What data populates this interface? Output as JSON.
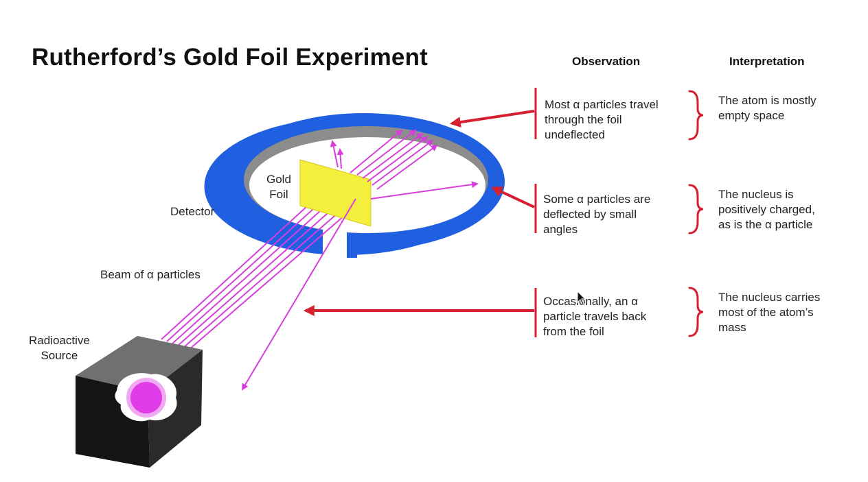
{
  "title": "Rutherford’s Gold Foil Experiment",
  "columns": {
    "observation": "Observation",
    "interpretation": "Interpretation"
  },
  "labels": {
    "gold_foil": [
      "Gold",
      "Foil"
    ],
    "detector": "Detector",
    "beam": "Beam of α particles",
    "source": [
      "Radioactive",
      "Source"
    ]
  },
  "rows": [
    {
      "observation": [
        "Most α particles travel",
        "through the foil",
        "undeflected"
      ],
      "interpretation": [
        "The atom is mostly",
        "empty space"
      ]
    },
    {
      "observation": [
        "Some α particles are",
        "deflected by small",
        "angles"
      ],
      "interpretation": [
        "The nucleus is",
        "positively charged,",
        "as is the α particle"
      ]
    },
    {
      "observation": [
        "Occasionally, an α",
        "particle travels back",
        "from the foil"
      ],
      "interpretation": [
        "The nucleus carries",
        "most of the atom’s",
        "mass"
      ]
    }
  ],
  "colors": {
    "detector": "#1f5fe0",
    "detector_inner": "#8c8c8c",
    "foil": "#f4ee3c",
    "beam": "#d63fdc",
    "pointer": "#d42030",
    "source_box": "#141414",
    "nucleus": "#e03ce8"
  }
}
